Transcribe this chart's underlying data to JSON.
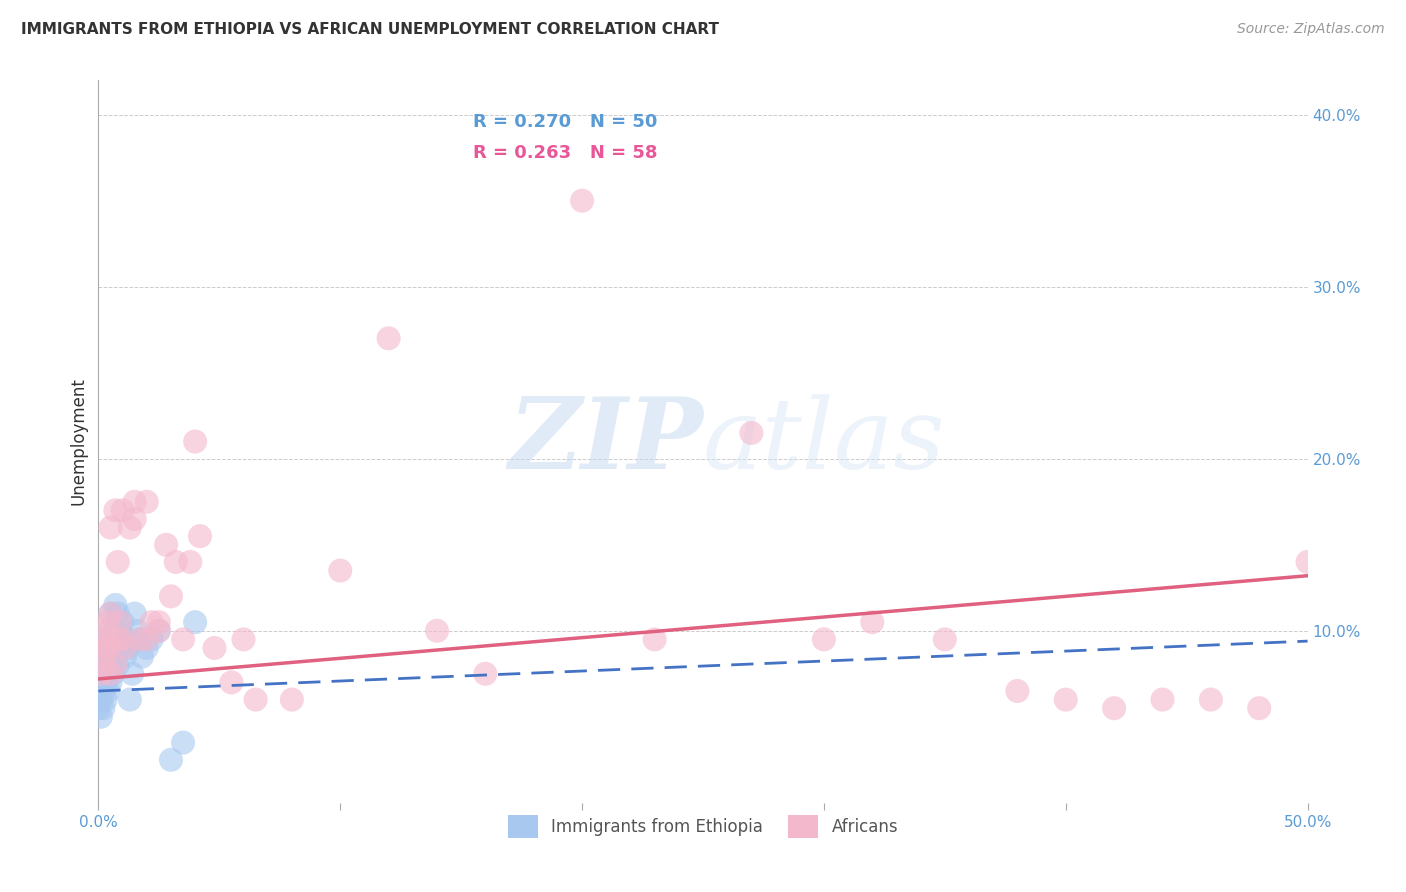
{
  "title": "IMMIGRANTS FROM ETHIOPIA VS AFRICAN UNEMPLOYMENT CORRELATION CHART",
  "source": "Source: ZipAtlas.com",
  "ylabel": "Unemployment",
  "xlim": [
    0,
    0.5
  ],
  "ylim": [
    0,
    0.42
  ],
  "xticks": [
    0.0,
    0.1,
    0.2,
    0.3,
    0.4,
    0.5
  ],
  "yticks": [
    0.1,
    0.2,
    0.3,
    0.4
  ],
  "xticklabels": [
    "0.0%",
    "",
    "",
    "",
    "",
    "50.0%"
  ],
  "yticklabels": [
    "10.0%",
    "20.0%",
    "30.0%",
    "40.0%"
  ],
  "legend_r1": "R = 0.270",
  "legend_n1": "N = 50",
  "legend_r2": "R = 0.263",
  "legend_n2": "N = 58",
  "blue_color": "#A8C8F0",
  "pink_color": "#F4B8CC",
  "blue_line_color": "#4472C4",
  "pink_line_color": "#E06080",
  "scatter_size": 300,
  "watermark_zip": "ZIP",
  "watermark_atlas": "atlas",
  "blue_intercept": 0.065,
  "blue_slope": 0.058,
  "pink_intercept": 0.072,
  "pink_slope": 0.12,
  "blue_x": [
    0.0,
    0.0,
    0.001,
    0.001,
    0.001,
    0.001,
    0.002,
    0.002,
    0.002,
    0.002,
    0.002,
    0.003,
    0.003,
    0.003,
    0.003,
    0.003,
    0.004,
    0.004,
    0.004,
    0.004,
    0.005,
    0.005,
    0.005,
    0.005,
    0.006,
    0.006,
    0.007,
    0.007,
    0.007,
    0.008,
    0.008,
    0.009,
    0.009,
    0.01,
    0.01,
    0.011,
    0.011,
    0.012,
    0.013,
    0.014,
    0.015,
    0.016,
    0.017,
    0.018,
    0.02,
    0.022,
    0.025,
    0.03,
    0.035,
    0.04
  ],
  "blue_y": [
    0.065,
    0.055,
    0.075,
    0.06,
    0.08,
    0.05,
    0.07,
    0.085,
    0.065,
    0.09,
    0.055,
    0.075,
    0.095,
    0.06,
    0.08,
    0.07,
    0.085,
    0.1,
    0.065,
    0.075,
    0.09,
    0.08,
    0.11,
    0.07,
    0.095,
    0.075,
    0.1,
    0.085,
    0.115,
    0.08,
    0.11,
    0.09,
    0.1,
    0.095,
    0.105,
    0.085,
    0.095,
    0.09,
    0.06,
    0.075,
    0.11,
    0.1,
    0.095,
    0.085,
    0.09,
    0.095,
    0.1,
    0.025,
    0.035,
    0.105
  ],
  "pink_x": [
    0.001,
    0.002,
    0.002,
    0.003,
    0.003,
    0.004,
    0.004,
    0.005,
    0.005,
    0.006,
    0.007,
    0.007,
    0.008,
    0.009,
    0.01,
    0.011,
    0.013,
    0.015,
    0.017,
    0.02,
    0.022,
    0.025,
    0.028,
    0.03,
    0.032,
    0.035,
    0.038,
    0.042,
    0.048,
    0.055,
    0.06,
    0.065,
    0.08,
    0.1,
    0.12,
    0.14,
    0.16,
    0.2,
    0.23,
    0.27,
    0.3,
    0.32,
    0.35,
    0.38,
    0.4,
    0.42,
    0.44,
    0.46,
    0.48,
    0.5,
    0.003,
    0.005,
    0.008,
    0.01,
    0.015,
    0.02,
    0.025,
    0.04
  ],
  "pink_y": [
    0.075,
    0.085,
    0.1,
    0.08,
    0.095,
    0.09,
    0.105,
    0.075,
    0.11,
    0.095,
    0.08,
    0.17,
    0.095,
    0.105,
    0.095,
    0.09,
    0.16,
    0.175,
    0.095,
    0.095,
    0.105,
    0.105,
    0.15,
    0.12,
    0.14,
    0.095,
    0.14,
    0.155,
    0.09,
    0.07,
    0.095,
    0.06,
    0.06,
    0.135,
    0.27,
    0.1,
    0.075,
    0.35,
    0.095,
    0.215,
    0.095,
    0.105,
    0.095,
    0.065,
    0.06,
    0.055,
    0.06,
    0.06,
    0.055,
    0.14,
    0.09,
    0.16,
    0.14,
    0.17,
    0.165,
    0.175,
    0.1,
    0.21
  ]
}
